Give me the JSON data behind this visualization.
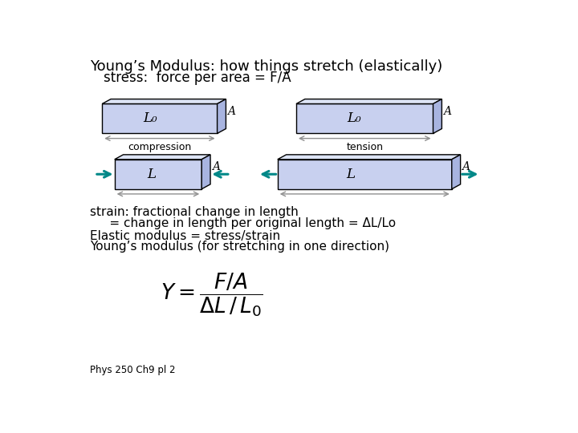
{
  "title": "Young’s Modulus: how things stretch (elastically)",
  "subtitle": "stress:  force per area = F/A",
  "box_fill": "#c8d0ef",
  "box_edge": "#000000",
  "top_fill": "#dde4f5",
  "side_fill": "#a8b4e0",
  "arrow_color": "#008888",
  "dim_arrow_color": "#909090",
  "text_color": "#000000",
  "bg_color": "#ffffff",
  "label_Lo": "L₀",
  "label_L": "L",
  "label_A": "A",
  "label_compression": "compression",
  "label_tension": "tension",
  "text_strain": "strain: fractional change in length",
  "text_strain2": "     = change in length per original length = ΔL/Lo",
  "text_elastic": "Elastic modulus = stress/strain",
  "text_youngs": "Young’s modulus (for stretching in one direction)",
  "text_footer": "Phys 250 Ch9 pl 2"
}
